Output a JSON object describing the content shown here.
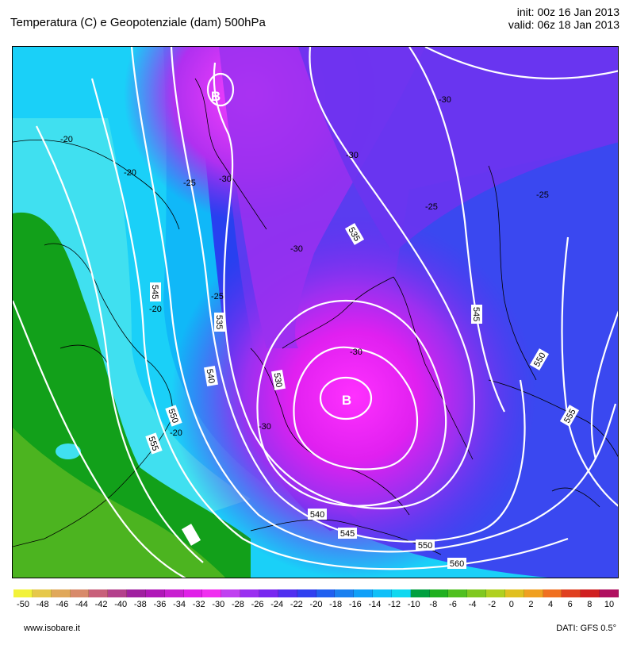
{
  "header": {
    "title": "Temperatura (C) e Geopotenziale (dam) 500hPa",
    "init": "init: 00z 16 Jan 2013",
    "valid": "valid: 06z 18 Jan 2013"
  },
  "map": {
    "low_label": "B",
    "geopotential_labels": [
      "535",
      "535",
      "530",
      "540",
      "540",
      "545",
      "545",
      "545",
      "550",
      "550",
      "550",
      "555",
      "555",
      "560"
    ],
    "temperature_labels": [
      "-20",
      "-20",
      "-20",
      "-20",
      "-25",
      "-25",
      "-25",
      "-25",
      "-30",
      "-30",
      "-30",
      "-30",
      "-30",
      "-30"
    ]
  },
  "legend": {
    "ticks": [
      "-50",
      "-48",
      "-46",
      "-44",
      "-42",
      "-40",
      "-38",
      "-36",
      "-34",
      "-32",
      "-30",
      "-28",
      "-26",
      "-24",
      "-22",
      "-20",
      "-18",
      "-16",
      "-14",
      "-12",
      "-10",
      "-8",
      "-6",
      "-4",
      "-2",
      "0",
      "2",
      "4",
      "6",
      "8",
      "10"
    ],
    "colors": [
      "#f2f23a",
      "#e6c84a",
      "#e0a85a",
      "#d88a6a",
      "#c8607a",
      "#b4408c",
      "#a020a0",
      "#b018b8",
      "#c820d0",
      "#e020e8",
      "#f030f0",
      "#c040f0",
      "#9a30f0",
      "#7828f0",
      "#5030f0",
      "#3040f0",
      "#2060f0",
      "#1a80f0",
      "#10a0f8",
      "#10c0f8",
      "#10d8f0",
      "#00a040",
      "#20b020",
      "#50c020",
      "#80c820",
      "#b0d020",
      "#e0c020",
      "#f0a020",
      "#f07020",
      "#e04020",
      "#d02020",
      "#b01060"
    ]
  },
  "footer": {
    "website": "www.isobare.it",
    "source": "DATI: GFS 0.5°"
  }
}
